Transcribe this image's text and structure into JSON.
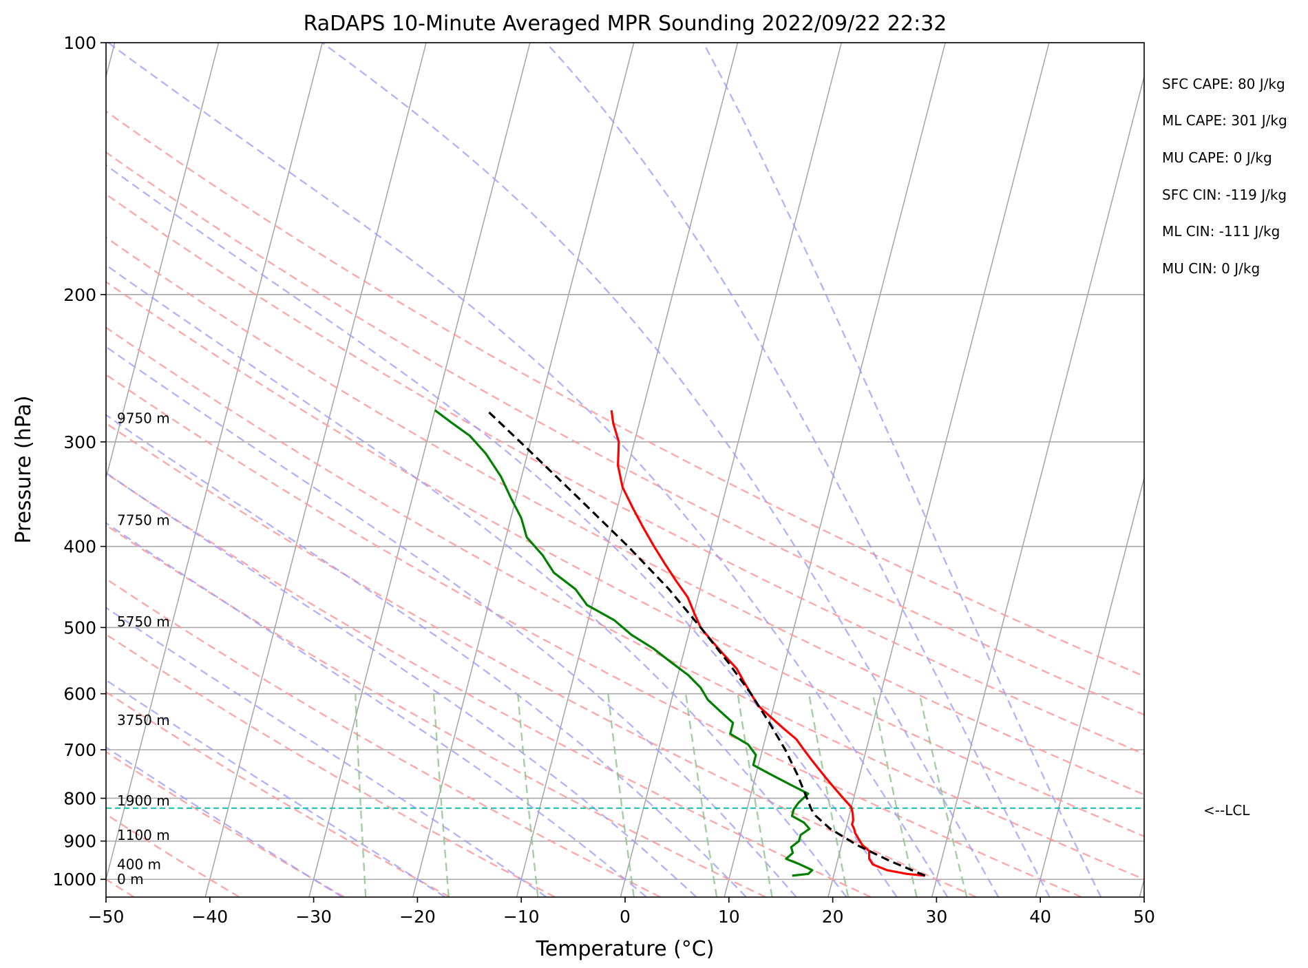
{
  "chart_data": {
    "type": "line",
    "title": "RaDAPS 10-Minute Averaged MPR Sounding 2022/09/22 22:32",
    "xlabel": "Temperature (°C)",
    "ylabel": "Pressure (hPa)",
    "x_range": [
      -50,
      50
    ],
    "y_range_hpa": [
      1050,
      100
    ],
    "y_scale": "log",
    "skew": true,
    "x_ticks": [
      -50,
      -40,
      -30,
      -20,
      -10,
      0,
      10,
      20,
      30,
      40,
      50
    ],
    "x_tick_labels": [
      "−50",
      "−40",
      "−30",
      "−20",
      "−10",
      "0",
      "10",
      "20",
      "30",
      "40",
      "50"
    ],
    "y_ticks": [
      100,
      200,
      300,
      400,
      500,
      600,
      700,
      800,
      900,
      1000
    ],
    "y_tick_labels": [
      "100",
      "200",
      "300",
      "400",
      "500",
      "600",
      "700",
      "800",
      "900",
      "1000"
    ],
    "grid": true,
    "series": [
      {
        "color": "#ff0000",
        "pressure": [
          990,
          985,
          975,
          960,
          945,
          925,
          910,
          895,
          880,
          870,
          860,
          850,
          835,
          820,
          800,
          780,
          760,
          740,
          720,
          700,
          680,
          660,
          640,
          620,
          600,
          580,
          560,
          540,
          520,
          500,
          480,
          460,
          440,
          420,
          400,
          380,
          360,
          340,
          320,
          300,
          285,
          275
        ],
        "temperature": [
          28.8,
          27.0,
          25.0,
          23.5,
          23.0,
          22.8,
          22.0,
          21.5,
          21.0,
          20.8,
          20.5,
          20.5,
          20.3,
          20.0,
          19.0,
          18.0,
          17.0,
          16.0,
          15.0,
          14.0,
          13.0,
          11.5,
          10.0,
          8.5,
          7.5,
          6.5,
          5.5,
          4.0,
          2.5,
          1.0,
          0.0,
          -1.0,
          -2.5,
          -4.0,
          -5.5,
          -7.0,
          -8.5,
          -10.0,
          -11.0,
          -11.5,
          -12.5,
          -13.0
        ]
      },
      {
        "color": "#008000",
        "pressure": [
          990,
          985,
          975,
          960,
          945,
          930,
          915,
          900,
          885,
          870,
          855,
          840,
          825,
          810,
          790,
          770,
          750,
          730,
          710,
          690,
          670,
          650,
          630,
          610,
          590,
          570,
          550,
          530,
          510,
          490,
          470,
          450,
          430,
          410,
          390,
          370,
          350,
          330,
          310,
          295,
          285,
          275
        ],
        "temperature": [
          16.0,
          17.5,
          17.8,
          16.5,
          15.0,
          15.5,
          15.2,
          15.8,
          15.8,
          16.5,
          15.8,
          14.5,
          14.5,
          14.8,
          15.5,
          13.5,
          11.5,
          9.5,
          9.5,
          8.5,
          6.5,
          6.5,
          5.0,
          3.5,
          2.5,
          1.0,
          -1.0,
          -3.0,
          -5.5,
          -7.5,
          -10.5,
          -12.0,
          -14.5,
          -16.0,
          -18.0,
          -19.0,
          -20.5,
          -22.0,
          -24.0,
          -26.0,
          -28.0,
          -30.0
        ]
      },
      {
        "color": "#000000",
        "dashed": true,
        "pressure": [
          990,
          950,
          910,
          870,
          840,
          825,
          800,
          750,
          700,
          650,
          600,
          550,
          500,
          450,
          400,
          350,
          300,
          275
        ],
        "temperature": [
          28.8,
          25.0,
          21.5,
          18.5,
          16.8,
          16.2,
          15.5,
          14.0,
          12.2,
          10.0,
          7.5,
          4.5,
          1.0,
          -3.0,
          -8.0,
          -14.0,
          -21.0,
          -25.0
        ]
      }
    ],
    "lcl_hpa": 822,
    "lcl_label": "<--LCL",
    "height_labels": [
      {
        "text": "0 m",
        "pressure": 1000
      },
      {
        "text": "400 m",
        "pressure": 960
      },
      {
        "text": "1100 m",
        "pressure": 885
      },
      {
        "text": "1900 m",
        "pressure": 805
      },
      {
        "text": "3750 m",
        "pressure": 645
      },
      {
        "text": "5750 m",
        "pressure": 492
      },
      {
        "text": "7750 m",
        "pressure": 372
      },
      {
        "text": "9750 m",
        "pressure": 281
      }
    ],
    "dry_adiabats_c": [
      -70,
      -60,
      -50,
      -40,
      -30,
      -20,
      -10,
      0,
      10,
      20,
      30,
      40,
      50,
      60,
      70,
      80,
      90,
      100
    ],
    "moist_adiabats_c": [
      -30,
      -20,
      -10,
      0,
      5,
      10,
      15,
      20,
      25,
      30,
      35,
      40,
      45
    ],
    "mixing_ratios_gkg": [
      0.5,
      1,
      2,
      4,
      7,
      10,
      16,
      24,
      32
    ],
    "colors": {
      "temperature": "#ff0000",
      "dewpoint": "#008000",
      "parcel": "#000000",
      "dry_adiabats": "#ff9999",
      "moist_adiabats": "#9999ff",
      "mixing_ratio": "#88c488",
      "lcl": "#20c0b0",
      "grid": "#a8a8a8"
    }
  },
  "indices": {
    "sfc_cape": "SFC CAPE: 80 J/kg",
    "ml_cape": "ML CAPE: 301 J/kg",
    "mu_cape": "MU CAPE: 0 J/kg",
    "sfc_cin": "SFC CIN: -119 J/kg",
    "ml_cin": "ML CIN: -111 J/kg",
    "mu_cin": "MU CIN: 0 J/kg"
  }
}
